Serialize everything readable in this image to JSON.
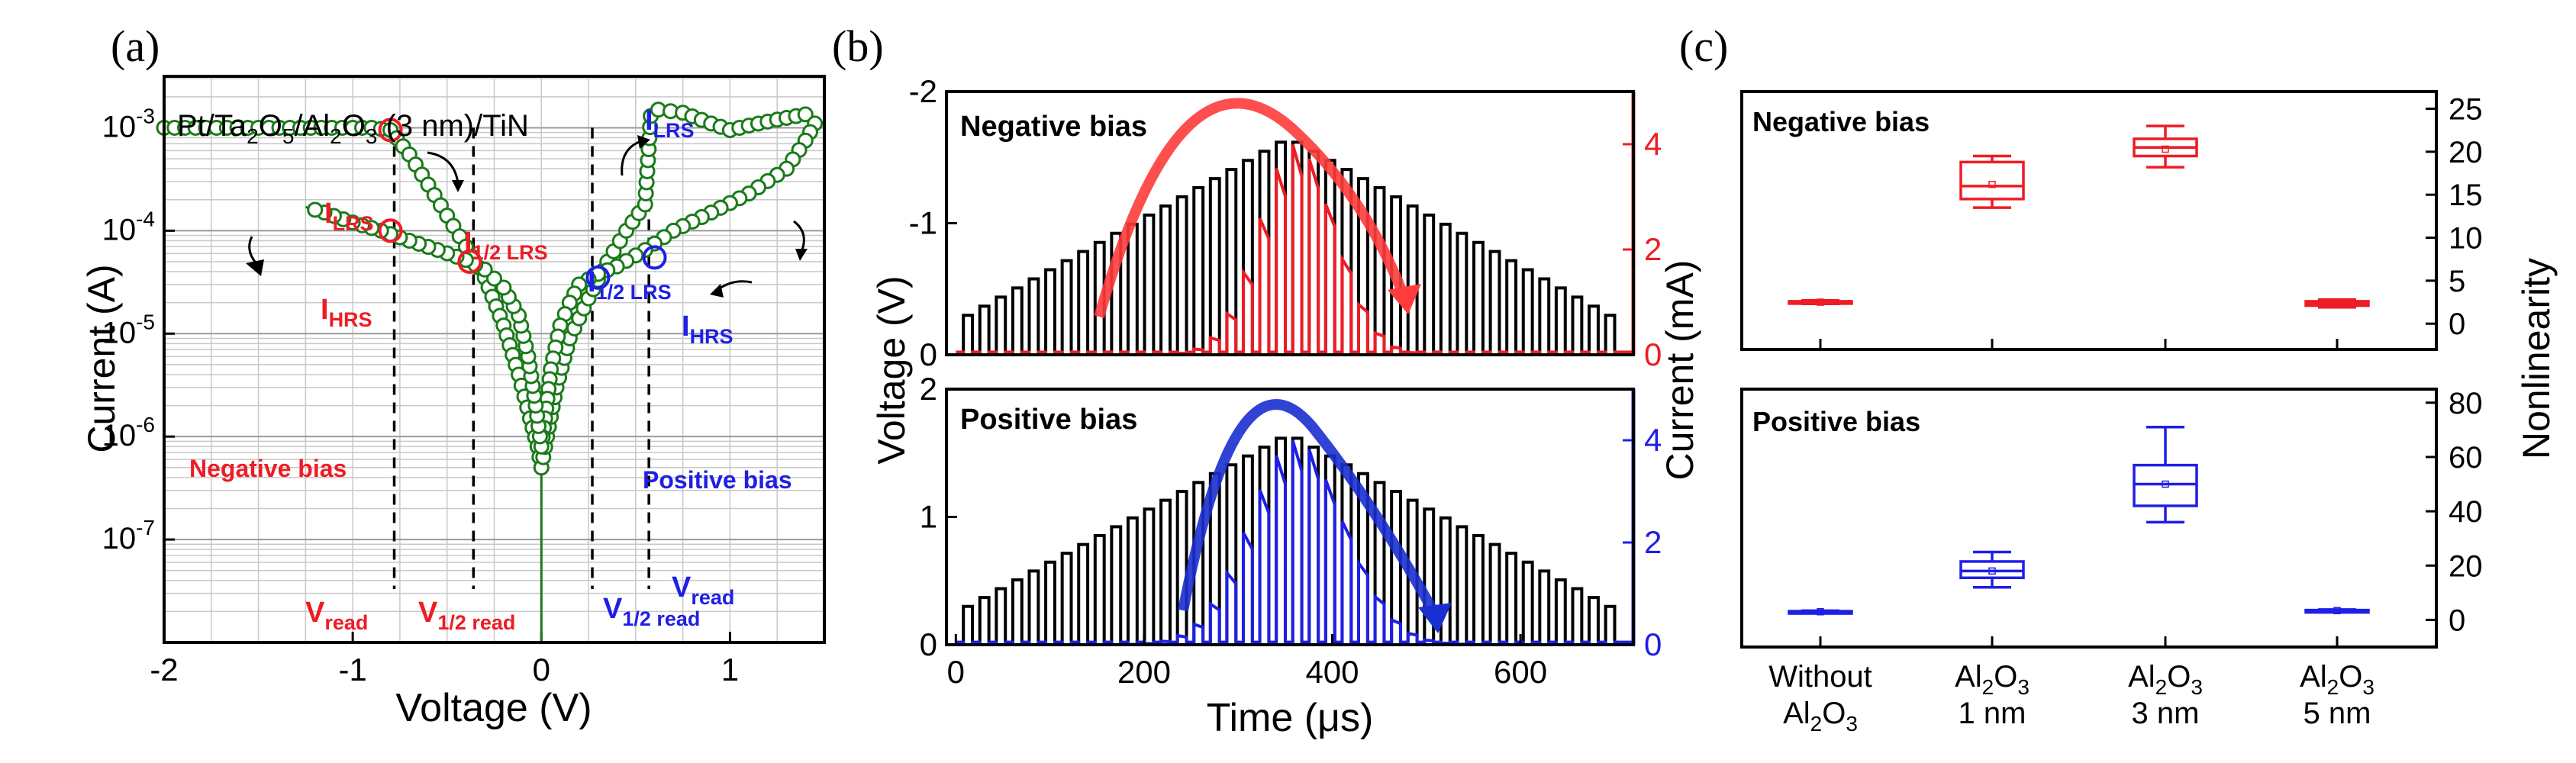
{
  "colors": {
    "red": "#ee1c25",
    "blue": "#1f1fe6",
    "green": "#1a7a1a",
    "black": "#000000",
    "grid": "#c8c8c8"
  },
  "panel_labels": [
    "(a)",
    "(b)",
    "(c)"
  ],
  "chart_data": [
    {
      "id": "a",
      "type": "line",
      "title": "",
      "inset_title": "Pt/Ta2O5/Al2O3 (3 nm)/TiN",
      "inset_title_parts": {
        "p1": "Pt/Ta",
        "s1": "2",
        "p2": "O",
        "s2": "5",
        "p3": "/Al",
        "s3": "2",
        "p4": "O",
        "s4": "3",
        "p5": " (3 nm)/TiN"
      },
      "xlabel": "Voltage (V)",
      "ylabel": "Current (A)",
      "xlim": [
        -2,
        1.5
      ],
      "ylim_log10": [
        -8,
        -2.5
      ],
      "yscale": "log",
      "xticks": [
        -2,
        -1,
        0,
        1
      ],
      "xtick_labels": [
        "-2",
        "-1",
        "0",
        "1"
      ],
      "yticks_exp": [
        -7,
        -6,
        -5,
        -4,
        -3
      ],
      "ytick_base": "10",
      "ytick_exps": [
        "-7",
        "-6",
        "-5",
        "-4",
        "-3"
      ],
      "series": [
        {
          "name": "I-V sweep",
          "points": [
            [
              -2,
              0.001
            ],
            [
              -1.5,
              0.001
            ],
            [
              -1.0,
              0.001
            ],
            [
              -0.9,
              0.001
            ],
            [
              -0.8,
              0.00095
            ],
            [
              -0.7,
              0.00055
            ],
            [
              -0.6,
              0.00028
            ],
            [
              -0.5,
              0.00014
            ],
            [
              -0.4,
              7e-05
            ],
            [
              -0.3,
              3.5e-05
            ],
            [
              -0.2,
              1.2e-05
            ],
            [
              -0.12,
              4e-06
            ],
            [
              -0.06,
              1.5e-06
            ],
            [
              -0.02,
              8e-07
            ],
            [
              0,
              5e-07
            ],
            [
              0.03,
              1e-06
            ],
            [
              0.08,
              3e-06
            ],
            [
              0.15,
              9e-06
            ],
            [
              0.25,
              2.2e-05
            ],
            [
              0.35,
              5e-05
            ],
            [
              0.45,
              0.0001
            ],
            [
              0.55,
              0.00018
            ],
            [
              0.58,
              0.0013
            ],
            [
              0.62,
              0.0015
            ],
            [
              0.75,
              0.0014
            ],
            [
              0.9,
              0.0011
            ],
            [
              1.0,
              0.00095
            ],
            [
              1.1,
              0.00105
            ],
            [
              1.25,
              0.0012
            ],
            [
              1.4,
              0.00135
            ],
            [
              1.45,
              0.0011
            ],
            [
              1.4,
              0.00075
            ],
            [
              1.3,
              0.0004
            ],
            [
              1.1,
              0.00023
            ],
            [
              0.9,
              0.00015
            ],
            [
              0.7,
              0.0001
            ],
            [
              0.55,
              6.5e-05
            ],
            [
              0.4,
              4.5e-05
            ],
            [
              0.3,
              3.8e-05
            ],
            [
              0.2,
              3e-05
            ],
            [
              0.15,
              2e-05
            ],
            [
              0.1,
              1.2e-05
            ],
            [
              0.05,
              4.5e-06
            ],
            [
              0.02,
              1.5e-06
            ],
            [
              0,
              8e-07
            ],
            [
              -0.03,
              2e-06
            ],
            [
              -0.07,
              6e-06
            ],
            [
              -0.12,
              1.5e-05
            ],
            [
              -0.2,
              2.8e-05
            ],
            [
              -0.3,
              4.2e-05
            ],
            [
              -0.4,
              5.2e-05
            ],
            [
              -0.55,
              6.5e-05
            ],
            [
              -0.7,
              8e-05
            ],
            [
              -0.85,
              0.0001
            ],
            [
              -1.0,
              0.00012
            ],
            [
              -1.15,
              0.00015
            ],
            [
              -1.25,
              0.00017
            ]
          ]
        }
      ],
      "markers": [
        {
          "label": "ILRS",
          "x": -0.8,
          "y": 0.00095,
          "color": "red"
        },
        {
          "label": "IHRS",
          "x": -0.8,
          "y": 0.0001,
          "color": "red"
        },
        {
          "label": "I1/2 LRS",
          "x": -0.38,
          "y": 5e-05,
          "color": "red"
        },
        {
          "label": "I1/2 LRS",
          "x": 0.3,
          "y": 3.5e-05,
          "color": "blue"
        },
        {
          "label": "IHRS",
          "x": 0.6,
          "y": 5.5e-05,
          "color": "blue"
        }
      ],
      "read_lines": [
        -0.78,
        -0.36,
        0.27,
        0.57
      ],
      "annotations": {
        "ilrs_neg": {
          "base": "I",
          "sub": "LRS"
        },
        "ihrs_neg": {
          "base": "I",
          "sub": "HRS"
        },
        "ihalf_neg": {
          "base": "I",
          "sub": "1/2 LRS"
        },
        "ilrs_pos": {
          "base": "I",
          "sub": "LRS"
        },
        "ihalf_pos": {
          "base": "I",
          "sub": "1/2 LRS"
        },
        "ihrs_pos": {
          "base": "I",
          "sub": "HRS"
        },
        "neg_bias": "Negative bias",
        "pos_bias": "Positive bias",
        "vread_neg": {
          "base": "V",
          "sub": "read"
        },
        "vhalf_neg": {
          "base": "V",
          "sub": "1/2 read"
        },
        "vhalf_pos": {
          "base": "V",
          "sub": "1/2 read"
        },
        "vread_pos": {
          "base": "V",
          "sub": "read"
        }
      }
    },
    {
      "id": "b-top",
      "type": "line",
      "title": "Negative bias",
      "ylabel_left": "Voltage (V)",
      "ylabel_right": "Current (mA)",
      "xlim": [
        -10,
        720
      ],
      "ylim_left": [
        0,
        -2
      ],
      "ylim_right": [
        0,
        5
      ],
      "yticks_left": [
        0,
        -1,
        -2
      ],
      "ytick_labels_left": [
        "0",
        "-1",
        "-2"
      ],
      "yticks_right": [
        0,
        2,
        4
      ],
      "ytick_labels_right": [
        "0",
        "2",
        "4"
      ],
      "pulse_count": 40,
      "pulse_period_us": 17.5,
      "pulse_peak_V": -1.65,
      "pulse_base_V": -0.3,
      "current_peak_mA": 4.0,
      "current_center_us": 365,
      "current_width_us": 40
    },
    {
      "id": "b-bottom",
      "type": "line",
      "title": "Positive bias",
      "xlabel": "Time (μs)",
      "xlim": [
        -10,
        720
      ],
      "xticks": [
        0,
        200,
        400,
        600
      ],
      "xtick_labels": [
        "0",
        "200",
        "400",
        "600"
      ],
      "ylim_left": [
        0,
        2
      ],
      "ylim_right": [
        0,
        5
      ],
      "yticks_left": [
        0,
        1,
        2
      ],
      "ytick_labels_left": [
        "0",
        "1",
        "2"
      ],
      "yticks_right": [
        0,
        2,
        4
      ],
      "ytick_labels_right": [
        "0",
        "2",
        "4"
      ],
      "pulse_count": 40,
      "pulse_period_us": 17.5,
      "pulse_peak_V": 1.65,
      "pulse_base_V": 0.3,
      "current_peak_mA": 4.0,
      "current_center_us": 365,
      "current_width_us": 50
    },
    {
      "id": "c-top",
      "type": "box",
      "title": "Negative bias",
      "ylabel": "Nonlinearity",
      "ylim": [
        -3,
        27
      ],
      "yticks": [
        0,
        5,
        10,
        15,
        20,
        25
      ],
      "ytick_labels": [
        "0",
        "5",
        "10",
        "15",
        "20",
        "25"
      ],
      "categories": [
        "Without Al2O3",
        "Al2O3 1 nm",
        "Al2O3 3 nm",
        "Al2O3 5 nm"
      ],
      "boxes": [
        {
          "min": 2.3,
          "q1": 2.4,
          "median": 2.5,
          "q3": 2.6,
          "max": 2.7,
          "mean": 2.5
        },
        {
          "min": 13.5,
          "q1": 14.5,
          "median": 16,
          "q3": 18.8,
          "max": 19.5,
          "mean": 16.2
        },
        {
          "min": 18.2,
          "q1": 19.5,
          "median": 20.5,
          "q3": 21.5,
          "max": 23.0,
          "mean": 20.3
        },
        {
          "min": 1.9,
          "q1": 2.1,
          "median": 2.3,
          "q3": 2.6,
          "max": 2.8,
          "mean": 2.3
        }
      ]
    },
    {
      "id": "c-bottom",
      "type": "box",
      "title": "Positive bias",
      "ylim": [
        -10,
        85
      ],
      "yticks": [
        0,
        20,
        40,
        60,
        80
      ],
      "ytick_labels": [
        "0",
        "20",
        "40",
        "60",
        "80"
      ],
      "categories": [
        "Without Al2O3",
        "Al2O3 1 nm",
        "Al2O3 3 nm",
        "Al2O3 5 nm"
      ],
      "category_labels": [
        {
          "l1": "Without",
          "l2a": "Al",
          "l2s1": "2",
          "l2b": "O",
          "l2s2": "3",
          "l2c": ""
        },
        {
          "l1a": "Al",
          "l1s1": "2",
          "l1b": "O",
          "l1s2": "3",
          "l2": "1 nm"
        },
        {
          "l1a": "Al",
          "l1s1": "2",
          "l1b": "O",
          "l1s2": "3",
          "l2": "3 nm"
        },
        {
          "l1a": "Al",
          "l1s1": "2",
          "l1b": "O",
          "l1s2": "3",
          "l2": "5 nm"
        }
      ],
      "boxes": [
        {
          "min": 2.5,
          "q1": 2.7,
          "median": 3.0,
          "q3": 3.2,
          "max": 3.4,
          "mean": 3.0
        },
        {
          "min": 12,
          "q1": 15.5,
          "median": 18,
          "q3": 21.5,
          "max": 25,
          "mean": 18
        },
        {
          "min": 36,
          "q1": 42,
          "median": 50,
          "q3": 57,
          "max": 71,
          "mean": 50
        },
        {
          "min": 3.0,
          "q1": 3.2,
          "median": 3.4,
          "q3": 3.6,
          "max": 3.8,
          "mean": 3.4
        }
      ]
    }
  ]
}
